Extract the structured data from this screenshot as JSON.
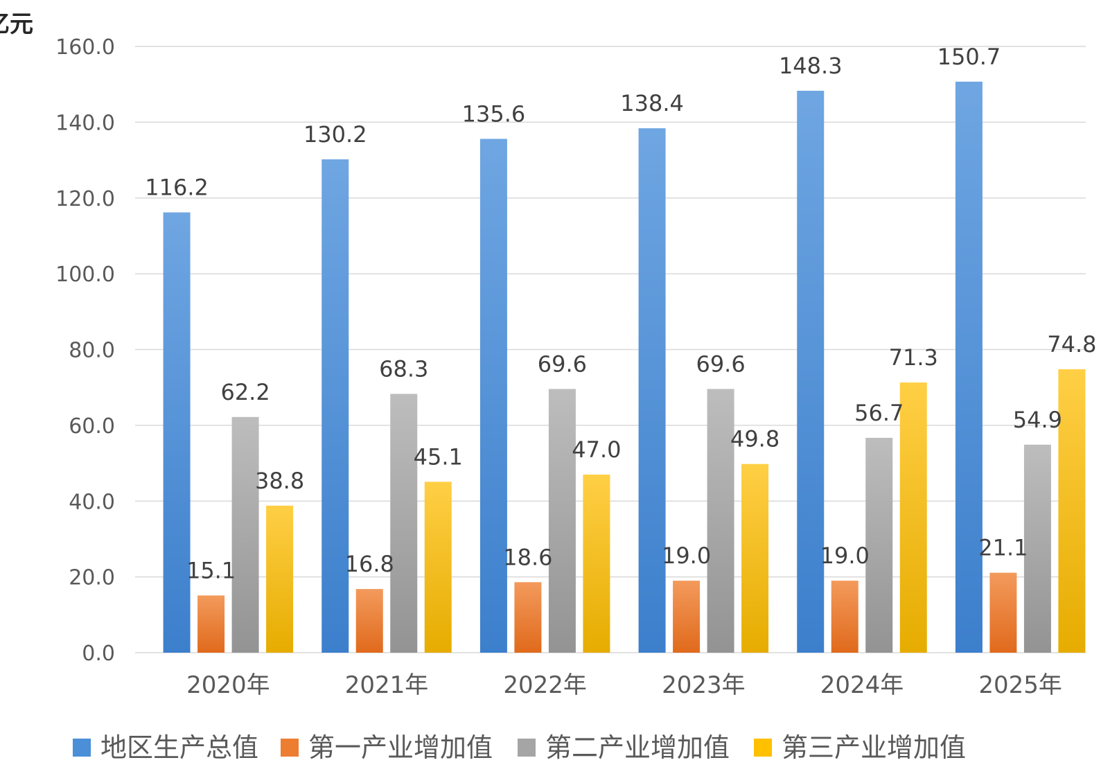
{
  "chart_data": {
    "type": "bar",
    "unit_label": "亿元",
    "categories": [
      "2020年",
      "2021年",
      "2022年",
      "2023年",
      "2024年",
      "2025年"
    ],
    "series": [
      {
        "name": "地区生产总值",
        "color": "#4a8fd8",
        "values": [
          116.2,
          130.2,
          135.6,
          138.4,
          148.3,
          150.7
        ]
      },
      {
        "name": "第一产业增加值",
        "color": "#ed7d31",
        "values": [
          15.1,
          16.8,
          18.6,
          19.0,
          19.0,
          21.1
        ]
      },
      {
        "name": "第二产业增加值",
        "color": "#a5a5a5",
        "values": [
          62.2,
          68.3,
          69.6,
          69.6,
          56.7,
          54.9
        ]
      },
      {
        "name": "第三产业增加值",
        "color": "#ffc000",
        "values": [
          38.8,
          45.1,
          47.0,
          49.8,
          71.3,
          74.8
        ]
      }
    ],
    "ylim": [
      0,
      160
    ],
    "yticks": [
      "0.0",
      "20.0",
      "40.0",
      "60.0",
      "80.0",
      "100.0",
      "120.0",
      "140.0",
      "160.0"
    ],
    "grid": true,
    "legend_position": "bottom"
  }
}
